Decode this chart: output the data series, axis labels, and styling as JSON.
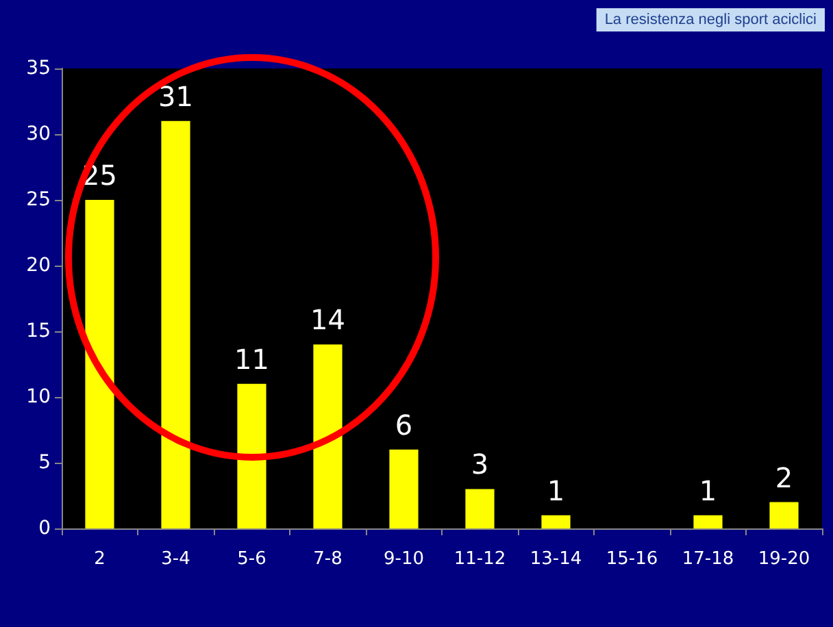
{
  "chart_data": {
    "type": "bar",
    "title": "La resistenza negli sport aciclici",
    "categories": [
      "2",
      "3-4",
      "5-6",
      "7-8",
      "9-10",
      "11-12",
      "13-14",
      "15-16",
      "17-18",
      "19-20"
    ],
    "values": [
      25,
      31,
      11,
      14,
      6,
      3,
      1,
      null,
      1,
      2
    ],
    "color": "#ffff00",
    "ylim": [
      0,
      35
    ],
    "yticks": [
      0,
      5,
      10,
      15,
      20,
      25,
      30,
      35
    ],
    "grid": false,
    "data_labels": true
  }
}
